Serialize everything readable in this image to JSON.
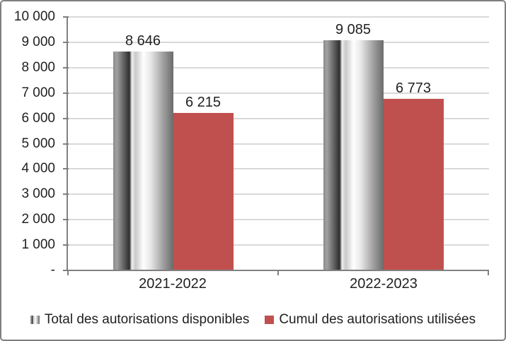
{
  "chart_data": {
    "type": "bar",
    "title": "",
    "categories": [
      "2021-2022",
      "2022-2023"
    ],
    "series": [
      {
        "name": "Total des autorisations disponibles",
        "style": "gray-gradient",
        "values": [
          8646,
          9085
        ],
        "value_labels": [
          "8 646",
          "9 085"
        ]
      },
      {
        "name": "Cumul des autorisations utilisées",
        "style": "solid",
        "color": "#c0504d",
        "values": [
          6215,
          6773
        ],
        "value_labels": [
          "6 215",
          "6 773"
        ]
      }
    ],
    "ylim": [
      0,
      10000
    ],
    "ytick_step": 1000,
    "ytick_labels": [
      "-",
      "1 000",
      "2 000",
      "3 000",
      "4 000",
      "5 000",
      "6 000",
      "7 000",
      "8 000",
      "9 000",
      "10 000"
    ],
    "grid": true,
    "legend_position": "bottom",
    "value_labels_shown": true
  },
  "colors": {
    "series_red": "#c0504d",
    "axis": "#808080",
    "gridline": "#d9d9d9",
    "text": "#212121",
    "frame_border": "#7f7f7f",
    "background": "#ffffff"
  }
}
